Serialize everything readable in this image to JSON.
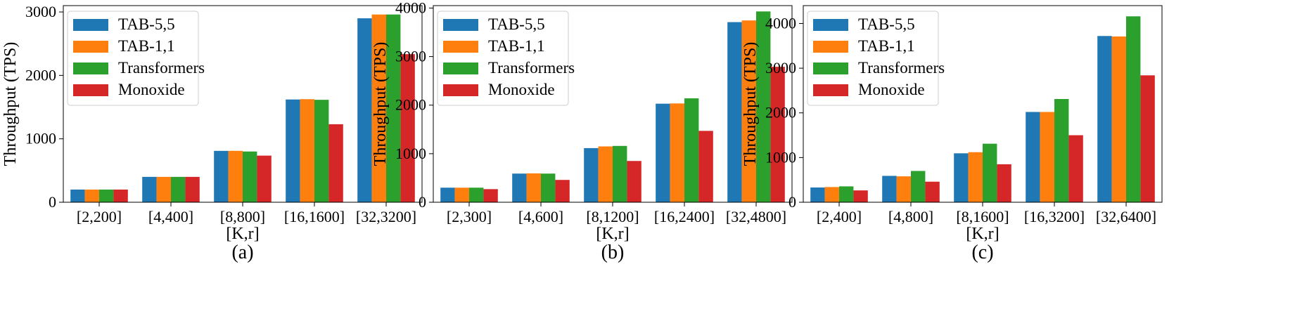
{
  "series_colors": [
    "#1f77b4",
    "#ff7f0e",
    "#2ca02c",
    "#d62728"
  ],
  "chart_data": [
    {
      "type": "bar",
      "caption": "(a)",
      "xlabel": "[K,r]",
      "ylabel": "Throughput (TPS)",
      "categories": [
        "[2,200]",
        "[4,400]",
        "[8,800]",
        "[16,1600]",
        "[32,3200]"
      ],
      "ylim": [
        0,
        3100
      ],
      "yticks": [
        0,
        1000,
        2000,
        3000
      ],
      "legend_position": "top-left",
      "series": [
        {
          "name": "TAB-5,5",
          "values": [
            200,
            400,
            810,
            1620,
            2900
          ]
        },
        {
          "name": "TAB-1,1",
          "values": [
            200,
            400,
            810,
            1625,
            2960
          ]
        },
        {
          "name": "Transformers",
          "values": [
            200,
            400,
            800,
            1615,
            2960
          ]
        },
        {
          "name": "Monoxide",
          "values": [
            200,
            400,
            735,
            1230,
            2335
          ]
        }
      ]
    },
    {
      "type": "bar",
      "caption": "(b)",
      "xlabel": "[K,r]",
      "ylabel": "Throughput (TPS)",
      "categories": [
        "[2,300]",
        "[4,600]",
        "[8,1200]",
        "[16,2400]",
        "[32,4800]"
      ],
      "ylim": [
        0,
        4050
      ],
      "yticks": [
        0,
        1000,
        2000,
        3000,
        4000
      ],
      "legend_position": "top-left",
      "series": [
        {
          "name": "TAB-5,5",
          "values": [
            300,
            590,
            1115,
            2030,
            3710
          ]
        },
        {
          "name": "TAB-1,1",
          "values": [
            300,
            595,
            1150,
            2035,
            3745
          ]
        },
        {
          "name": "Transformers",
          "values": [
            300,
            590,
            1160,
            2140,
            3930
          ]
        },
        {
          "name": "Monoxide",
          "values": [
            270,
            460,
            850,
            1470,
            2790
          ]
        }
      ]
    },
    {
      "type": "bar",
      "caption": "(c)",
      "xlabel": "[K,r]",
      "ylabel": "Throughput (TPS)",
      "categories": [
        "[2,400]",
        "[4,800]",
        "[8,1600]",
        "[16,3200]",
        "[32,6400]"
      ],
      "ylim": [
        0,
        4400
      ],
      "yticks": [
        0,
        1000,
        2000,
        3000,
        4000
      ],
      "legend_position": "top-left",
      "series": [
        {
          "name": "TAB-5,5",
          "values": [
            330,
            590,
            1095,
            2020,
            3720
          ]
        },
        {
          "name": "TAB-1,1",
          "values": [
            340,
            580,
            1120,
            2020,
            3710
          ]
        },
        {
          "name": "Transformers",
          "values": [
            355,
            700,
            1310,
            2310,
            4160
          ]
        },
        {
          "name": "Monoxide",
          "values": [
            265,
            460,
            850,
            1500,
            2840
          ]
        }
      ]
    }
  ]
}
